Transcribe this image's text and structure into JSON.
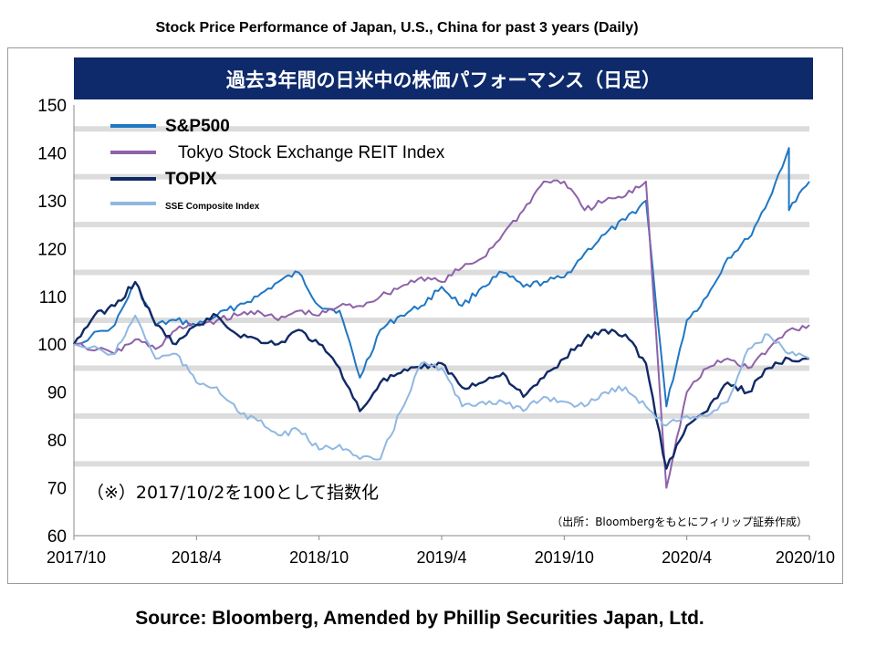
{
  "header_title": "Stock Price Performance of Japan, U.S., China for past 3 years (Daily)",
  "source": "Source: Bloomberg, Amended by Phillip Securities Japan, Ltd.",
  "colors": {
    "banner_bg": "#0e2a6b",
    "sp500": "#1f77c4",
    "reit": "#8e62a8",
    "topix": "#112a66",
    "sse": "#90b8e2",
    "grid_band": "#dcdcdc"
  },
  "chart_data": {
    "type": "line",
    "title": "過去3年間の日米中の株価パフォーマンス（日足）",
    "annotation": "（※）2017/10/2を100として指数化",
    "note": "（出所：Bloombergをもとにフィリップ証券作成）",
    "x_ticks": [
      "2017/10",
      "2018/4",
      "2018/10",
      "2019/4",
      "2019/10",
      "2020/4",
      "2020/10"
    ],
    "xlim": [
      "2017/10",
      "2020/10"
    ],
    "ylim": [
      60,
      150
    ],
    "y_ticks": [
      60,
      70,
      80,
      90,
      100,
      110,
      120,
      130,
      140,
      150
    ],
    "grid": "horizontal bands",
    "legend_position": "top-left",
    "series": [
      {
        "name": "S&P500",
        "color": "#1f77c4",
        "points": [
          [
            "2017/10",
            100
          ],
          [
            "2017/12",
            104
          ],
          [
            "2018/1",
            113
          ],
          [
            "2018/2",
            104
          ],
          [
            "2018/3",
            105
          ],
          [
            "2018/4",
            104
          ],
          [
            "2018/5",
            106
          ],
          [
            "2018/6",
            108
          ],
          [
            "2018/7",
            110
          ],
          [
            "2018/8",
            113
          ],
          [
            "2018/9",
            115
          ],
          [
            "2018/10",
            108
          ],
          [
            "2018/11",
            107
          ],
          [
            "2018/12",
            93
          ],
          [
            "2019/1",
            103
          ],
          [
            "2019/2",
            106
          ],
          [
            "2019/3",
            108
          ],
          [
            "2019/4",
            112
          ],
          [
            "2019/5",
            108
          ],
          [
            "2019/6",
            112
          ],
          [
            "2019/7",
            115
          ],
          [
            "2019/8",
            112
          ],
          [
            "2019/9",
            113
          ],
          [
            "2019/10",
            114
          ],
          [
            "2019/11",
            119
          ],
          [
            "2019/12",
            123
          ],
          [
            "2020/1",
            126
          ],
          [
            "2020/2",
            130
          ],
          [
            "2020/3",
            87
          ],
          [
            "2020/4",
            105
          ],
          [
            "2020/5",
            110
          ],
          [
            "2020/6",
            118
          ],
          [
            "2020/7",
            122
          ],
          [
            "2020/8",
            130
          ],
          [
            "2020/9",
            141
          ],
          [
            "2020/9",
            128
          ],
          [
            "2020/10",
            134
          ]
        ]
      },
      {
        "name": "Tokyo Stock Exchange REIT Index",
        "color": "#8e62a8",
        "points": [
          [
            "2017/10",
            100
          ],
          [
            "2017/12",
            98
          ],
          [
            "2018/1",
            101
          ],
          [
            "2018/2",
            99
          ],
          [
            "2018/3",
            103
          ],
          [
            "2018/4",
            104
          ],
          [
            "2018/5",
            105
          ],
          [
            "2018/6",
            106
          ],
          [
            "2018/7",
            107
          ],
          [
            "2018/8",
            105
          ],
          [
            "2018/9",
            107
          ],
          [
            "2018/10",
            106
          ],
          [
            "2018/11",
            108
          ],
          [
            "2018/12",
            108
          ],
          [
            "2019/1",
            110
          ],
          [
            "2019/2",
            112
          ],
          [
            "2019/3",
            114
          ],
          [
            "2019/4",
            113
          ],
          [
            "2019/5",
            116
          ],
          [
            "2019/6",
            118
          ],
          [
            "2019/7",
            123
          ],
          [
            "2019/8",
            128
          ],
          [
            "2019/9",
            134
          ],
          [
            "2019/10",
            134
          ],
          [
            "2019/11",
            128
          ],
          [
            "2019/12",
            130
          ],
          [
            "2020/1",
            131
          ],
          [
            "2020/2",
            134
          ],
          [
            "2020/3",
            70
          ],
          [
            "2020/4",
            90
          ],
          [
            "2020/5",
            95
          ],
          [
            "2020/6",
            97
          ],
          [
            "2020/7",
            95
          ],
          [
            "2020/8",
            99
          ],
          [
            "2020/9",
            103
          ],
          [
            "2020/10",
            104
          ]
        ]
      },
      {
        "name": "TOPIX",
        "color": "#112a66",
        "points": [
          [
            "2017/10",
            100
          ],
          [
            "2017/11",
            106
          ],
          [
            "2017/12",
            108
          ],
          [
            "2018/1",
            113
          ],
          [
            "2018/2",
            104
          ],
          [
            "2018/3",
            100
          ],
          [
            "2018/4",
            104
          ],
          [
            "2018/5",
            106
          ],
          [
            "2018/6",
            102
          ],
          [
            "2018/7",
            101
          ],
          [
            "2018/8",
            100
          ],
          [
            "2018/9",
            103
          ],
          [
            "2018/10",
            100
          ],
          [
            "2018/11",
            95
          ],
          [
            "2018/12",
            86
          ],
          [
            "2019/1",
            92
          ],
          [
            "2019/2",
            94
          ],
          [
            "2019/3",
            95
          ],
          [
            "2019/4",
            96
          ],
          [
            "2019/5",
            91
          ],
          [
            "2019/6",
            92
          ],
          [
            "2019/7",
            94
          ],
          [
            "2019/8",
            89
          ],
          [
            "2019/9",
            93
          ],
          [
            "2019/10",
            97
          ],
          [
            "2019/11",
            101
          ],
          [
            "2019/12",
            103
          ],
          [
            "2020/1",
            102
          ],
          [
            "2020/2",
            96
          ],
          [
            "2020/3",
            74
          ],
          [
            "2020/4",
            83
          ],
          [
            "2020/5",
            86
          ],
          [
            "2020/6",
            92
          ],
          [
            "2020/7",
            90
          ],
          [
            "2020/8",
            95
          ],
          [
            "2020/9",
            97
          ],
          [
            "2020/10",
            97
          ]
        ]
      },
      {
        "name": "SSE Composite Index",
        "color": "#90b8e2",
        "points": [
          [
            "2017/10",
            100
          ],
          [
            "2017/12",
            98
          ],
          [
            "2018/1",
            106
          ],
          [
            "2018/2",
            97
          ],
          [
            "2018/3",
            98
          ],
          [
            "2018/4",
            92
          ],
          [
            "2018/5",
            91
          ],
          [
            "2018/6",
            86
          ],
          [
            "2018/7",
            84
          ],
          [
            "2018/8",
            81
          ],
          [
            "2018/9",
            82
          ],
          [
            "2018/10",
            78
          ],
          [
            "2018/11",
            79
          ],
          [
            "2018/12",
            76
          ],
          [
            "2019/1",
            76
          ],
          [
            "2019/2",
            86
          ],
          [
            "2019/3",
            96
          ],
          [
            "2019/4",
            95
          ],
          [
            "2019/5",
            87
          ],
          [
            "2019/6",
            88
          ],
          [
            "2019/7",
            88
          ],
          [
            "2019/8",
            86
          ],
          [
            "2019/9",
            89
          ],
          [
            "2019/10",
            88
          ],
          [
            "2019/11",
            87
          ],
          [
            "2019/12",
            90
          ],
          [
            "2020/1",
            91
          ],
          [
            "2020/2",
            87
          ],
          [
            "2020/3",
            83
          ],
          [
            "2020/4",
            85
          ],
          [
            "2020/5",
            85
          ],
          [
            "2020/6",
            88
          ],
          [
            "2020/7",
            99
          ],
          [
            "2020/8",
            102
          ],
          [
            "2020/9",
            98
          ],
          [
            "2020/10",
            97
          ]
        ]
      }
    ]
  }
}
